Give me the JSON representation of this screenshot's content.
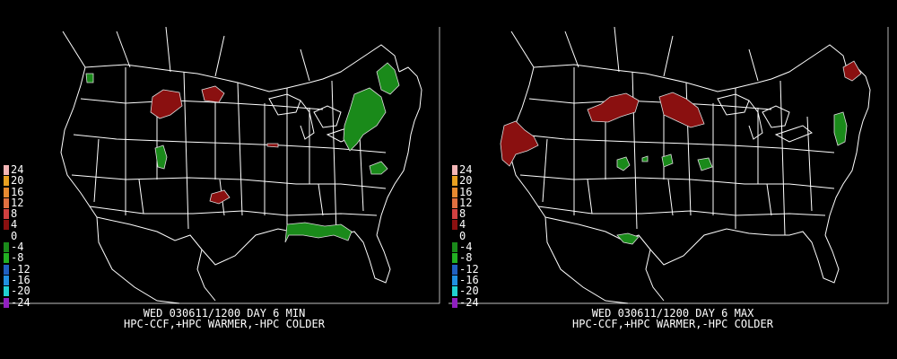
{
  "panels": [
    {
      "title": "WED 030611/1200  DAY 6 MIN",
      "subtitle": "HPC-CCF,+HPC WARMER,-HPC COLDER"
    },
    {
      "title": "WED 030611/1200  DAY 6 MAX",
      "subtitle": "HPC-CCF,+HPC WARMER,-HPC COLDER"
    }
  ],
  "legend": [
    {
      "label": "24",
      "color": "#f4b6b6"
    },
    {
      "label": "20",
      "color": "#e8a020"
    },
    {
      "label": "16",
      "color": "#e88a30"
    },
    {
      "label": "12",
      "color": "#e07040"
    },
    {
      "label": "8",
      "color": "#d04040"
    },
    {
      "label": "4",
      "color": "#8a1010"
    },
    {
      "label": "0",
      "color": "#000000"
    },
    {
      "label": "-4",
      "color": "#1a8a1a"
    },
    {
      "label": "-8",
      "color": "#22b022"
    },
    {
      "label": "-12",
      "color": "#2060c0"
    },
    {
      "label": "-16",
      "color": "#2090e0"
    },
    {
      "label": "-20",
      "color": "#20d0d0"
    },
    {
      "label": "-24",
      "color": "#9020c0"
    }
  ],
  "colors": {
    "warmer_anomaly": "#8a1010",
    "colder_anomaly": "#1a8a1a",
    "boundaries": "#ffffff",
    "background": "#000000"
  }
}
